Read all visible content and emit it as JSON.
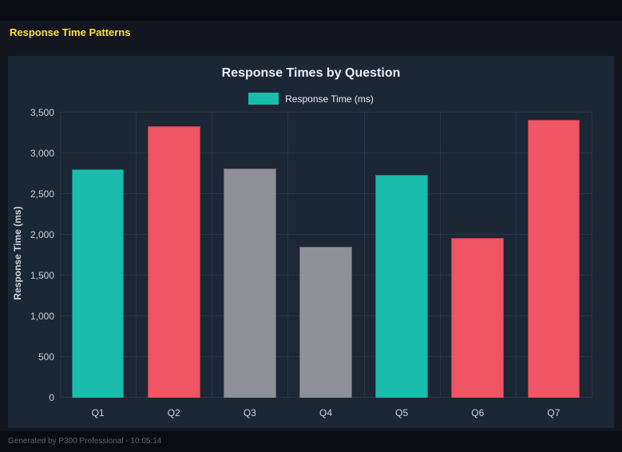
{
  "page": {
    "title": "Response Time Patterns",
    "footer": "Generated by P300 Professional - 10:05:14"
  },
  "colors": {
    "page_background": "#14161f",
    "panel_background": "#1c2736",
    "accent_yellow": "#ffe135",
    "teal": "#1abcab",
    "red": "#ef5562",
    "gray": "#8f9097",
    "gridline": "#2a3446"
  },
  "chart_data": {
    "type": "bar",
    "title": "Response Times by Question",
    "legend": [
      {
        "label": "Response Time (ms)",
        "color": "#1abcab"
      }
    ],
    "legend_position": "top",
    "categories": [
      "Q1",
      "Q2",
      "Q3",
      "Q4",
      "Q5",
      "Q6",
      "Q7"
    ],
    "values": [
      2800,
      3330,
      2810,
      1850,
      2735,
      1960,
      3410
    ],
    "bar_colors": [
      "#1abcab",
      "#ef5562",
      "#8f9097",
      "#8f9097",
      "#1abcab",
      "#ef5562",
      "#ef5562"
    ],
    "xlabel": "",
    "ylabel": "Response Time (ms)",
    "ylim": [
      0,
      3500
    ],
    "ytick_step": 500,
    "yticks": [
      "0",
      "500",
      "1,000",
      "1,500",
      "2,000",
      "2,500",
      "3,000",
      "3,500"
    ],
    "grid": true
  }
}
